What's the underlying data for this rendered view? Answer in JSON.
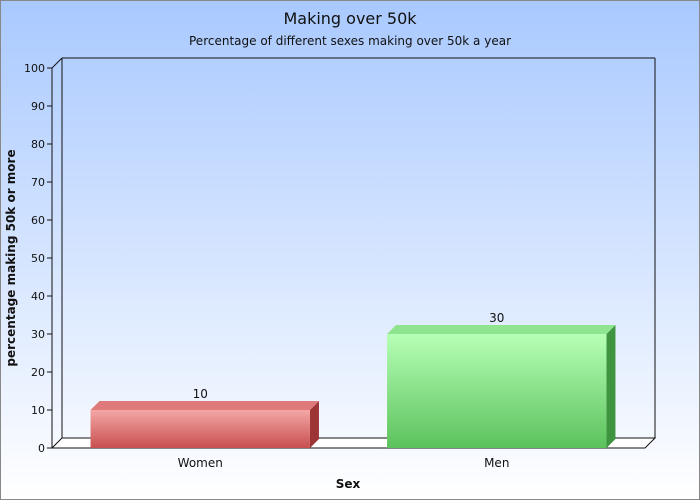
{
  "chart_data": {
    "type": "bar",
    "title": "Making over 50k",
    "subtitle": "Percentage of different sexes making over 50k a year",
    "xlabel": "Sex",
    "ylabel": "percentage making 50k or more",
    "categories": [
      "Women",
      "Men"
    ],
    "values": [
      10,
      30
    ],
    "data_labels": [
      "10",
      "30"
    ],
    "ylim": [
      0,
      100
    ],
    "yticks": [
      0,
      10,
      20,
      30,
      40,
      50,
      60,
      70,
      80,
      90,
      100
    ],
    "grid": false,
    "legend": "none",
    "bar_colors": [
      {
        "light": "#f4a6a6",
        "mid": "#e07a7a",
        "dark": "#c84f4f",
        "side": "#9e3535"
      },
      {
        "light": "#b6ffb6",
        "mid": "#8fe58f",
        "dark": "#5cc25c",
        "side": "#3f943f"
      }
    ],
    "background": {
      "top": "#a9c9ff",
      "bottom": "#ffffff"
    }
  }
}
